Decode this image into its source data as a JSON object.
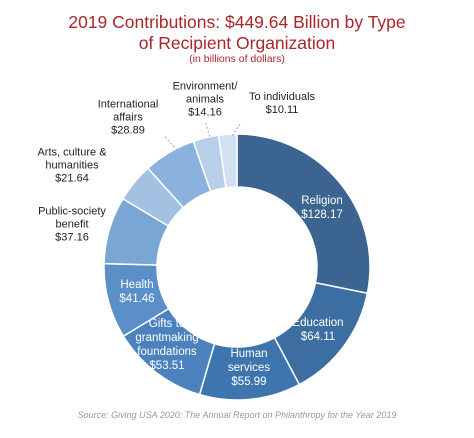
{
  "chart_data": {
    "type": "donut",
    "title": "2019 Contributions: $449.64 Billion by Type of Recipient Organization",
    "subtitle": "(in billions of dollars)",
    "categories": [
      "Religion",
      "Education",
      "Human services",
      "Gifts to grantmaking foundations",
      "Health",
      "Public-society benefit",
      "Arts, culture & humanities",
      "International affairs",
      "Environment/animals",
      "To individuals"
    ],
    "values": [
      128.17,
      64.11,
      55.99,
      53.51,
      41.46,
      37.16,
      21.64,
      28.89,
      14.16,
      10.11
    ],
    "value_labels": [
      "$128.17",
      "$64.11",
      "$55.99",
      "$53.51",
      "$41.46",
      "$37.16",
      "$21.64",
      "$28.89",
      "$14.16",
      "$10.11"
    ],
    "colors": [
      "#3b6491",
      "#3c6ea2",
      "#3f75ae",
      "#4b82bd",
      "#5b8fc7",
      "#7aa6d5",
      "#a2c1e3",
      "#8ab2dd",
      "#b8cfea",
      "#d2e1f2"
    ],
    "source": "Source: Giving USA 2020: The Annual Report on Philanthropy for the Year 2019"
  }
}
